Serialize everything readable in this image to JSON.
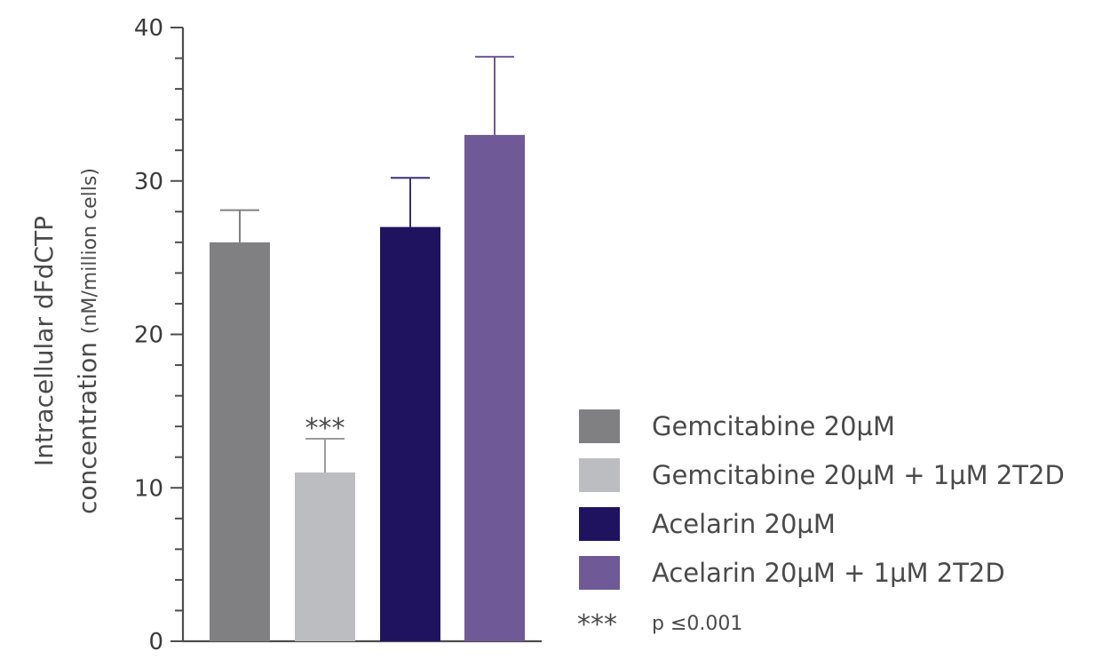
{
  "chart_data": {
    "type": "bar",
    "ylabel": "Intracellular dFdCTP",
    "ylabel_sub_main": "concentration",
    "ylabel_sub_units": "(nM/million cells)",
    "ylim": [
      0,
      40
    ],
    "yticks": [
      "0",
      "10",
      "20",
      "30",
      "40"
    ],
    "grid": false,
    "legend_position": "right",
    "series": [
      {
        "name": "Gemcitabine 20µM",
        "value": 26.0,
        "error": 2.1,
        "color": "#808083"
      },
      {
        "name": "Gemcitabine 20µM + 1µM 2T2D",
        "value": 11.0,
        "error": 2.2,
        "color": "#bcbdc0",
        "annotation": "***"
      },
      {
        "name": "Acelarin 20µM",
        "value": 27.0,
        "error": 3.2,
        "color": "#1f1360"
      },
      {
        "name": "Acelarin 20µM + 1µM 2T2D",
        "value": 33.0,
        "error": 5.1,
        "color": "#6f5a97"
      }
    ],
    "significance_note": {
      "symbol": "***",
      "text": "p ≤0.001"
    }
  }
}
